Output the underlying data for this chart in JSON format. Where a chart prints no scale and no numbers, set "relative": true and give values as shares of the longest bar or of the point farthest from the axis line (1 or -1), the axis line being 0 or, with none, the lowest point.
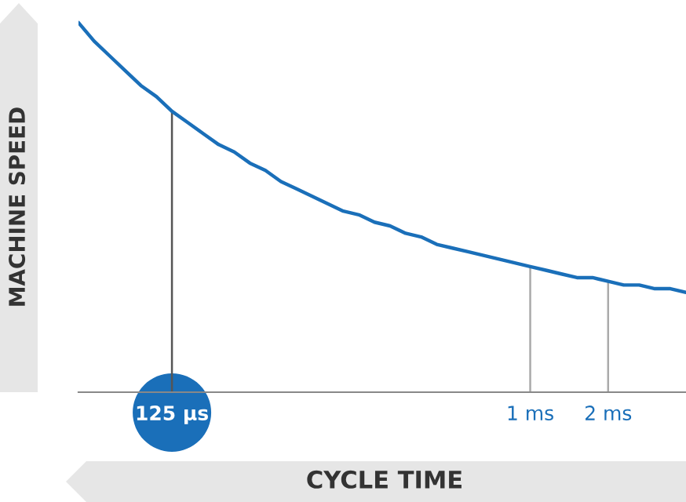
{
  "chart_data": {
    "type": "line",
    "relative": true,
    "xlabel": "CYCLE TIME",
    "ylabel": "MACHINE SPEED",
    "categories": [
      null,
      null,
      null,
      null,
      null,
      null,
      "125 µs",
      null,
      null,
      null,
      null,
      null,
      null,
      null,
      null,
      null,
      null,
      null,
      null,
      null,
      null,
      null,
      null,
      null,
      null,
      null,
      null,
      null,
      null,
      "1 ms",
      null,
      null,
      null,
      null,
      "2 ms",
      null,
      null,
      null,
      null,
      null
    ],
    "series": [
      {
        "color": "#1a6fb9",
        "values": [
          1.0,
          0.95,
          0.91,
          0.87,
          0.83,
          0.8,
          0.76,
          0.73,
          0.7,
          0.67,
          0.65,
          0.62,
          0.6,
          0.57,
          0.55,
          0.53,
          0.51,
          0.49,
          0.48,
          0.46,
          0.45,
          0.43,
          0.42,
          0.4,
          0.39,
          0.38,
          0.37,
          0.36,
          0.35,
          0.34,
          0.33,
          0.32,
          0.31,
          0.31,
          0.3,
          0.29,
          0.29,
          0.28,
          0.28,
          0.27
        ]
      }
    ],
    "ref_lines": [
      {
        "axis": "x",
        "value": "125 µs",
        "color": "#555555"
      },
      {
        "axis": "x",
        "value": "1 ms",
        "color": "#aaaaaa"
      },
      {
        "axis": "x",
        "value": "2 ms",
        "color": "#aaaaaa"
      }
    ],
    "grid": false,
    "legend": false,
    "marker": "none",
    "line_style": "solid"
  }
}
